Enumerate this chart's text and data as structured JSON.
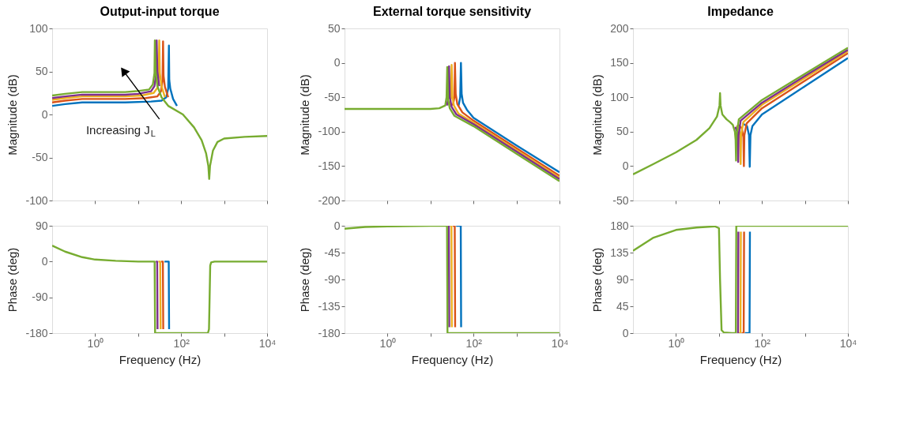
{
  "chart_data": [
    {
      "type": "line",
      "title": "Output-input torque",
      "ylabel": "Magnitude (dB)",
      "log": "x",
      "tick_labels": "y",
      "line_style": "solid",
      "xlim": [
        0.1,
        10000
      ],
      "xticks": [
        {
          "value": 1,
          "label": null
        },
        {
          "value": 10,
          "label": null
        },
        {
          "value": 100,
          "label": null
        },
        {
          "value": 1000,
          "label": null
        },
        {
          "value": 10000,
          "label": null
        }
      ],
      "ylim": [
        -100,
        100
      ],
      "yticks": [
        -100,
        -50,
        0,
        50,
        100
      ],
      "annotations": [
        "Increasing J$_{L}$"
      ],
      "series": [
        {
          "color": "#0072bd",
          "x": [
            0.1,
            0.2,
            0.5,
            1,
            5,
            20,
            35,
            45,
            50,
            52,
            53,
            56,
            65,
            80
          ],
          "values": [
            10,
            12,
            14,
            14,
            14,
            15,
            16,
            20,
            30,
            80,
            40,
            30,
            18,
            10
          ]
        },
        {
          "color": "#d95319",
          "x": [
            0.1,
            0.2,
            0.5,
            1,
            5,
            15,
            28,
            34,
            37,
            38,
            39,
            42,
            50
          ],
          "values": [
            14,
            16,
            18,
            18,
            18,
            19,
            21,
            27,
            40,
            85,
            45,
            32,
            20
          ]
        },
        {
          "color": "#edb120",
          "x": [
            0.1,
            0.2,
            0.5,
            1,
            5,
            12,
            23,
            28,
            30,
            31,
            32,
            35,
            42
          ],
          "values": [
            17,
            19,
            21,
            21,
            21,
            22,
            25,
            31,
            45,
            86,
            48,
            33,
            20
          ]
        },
        {
          "color": "#7e2f8e",
          "x": [
            0.1,
            0.2,
            0.5,
            1,
            5,
            10,
            20,
            24,
            26,
            27,
            28,
            31
          ],
          "values": [
            19,
            21,
            23,
            23,
            23,
            24,
            27,
            33,
            46,
            86,
            50,
            33
          ]
        },
        {
          "color": "#77ac30",
          "x": [
            0.1,
            0.2,
            0.5,
            1,
            5,
            9,
            18,
            22,
            24,
            24.5,
            25.5,
            28,
            35,
            50,
            110,
            200,
            300,
            380,
            430,
            450,
            470,
            550,
            700,
            1000,
            3000,
            10000
          ],
          "values": [
            22,
            24,
            26,
            26,
            26,
            27,
            29,
            35,
            48,
            86,
            50,
            33,
            20,
            10,
            0,
            -15,
            -30,
            -45,
            -60,
            -75,
            -60,
            -42,
            -32,
            -28,
            -26,
            -25
          ]
        }
      ]
    },
    {
      "type": "line",
      "title": "External torque sensitivity",
      "ylabel": "Magnitude (dB)",
      "log": "x",
      "tick_labels": "y",
      "line_style": "solid",
      "xlim": [
        0.1,
        10000
      ],
      "xticks": [
        {
          "value": 1,
          "label": null
        },
        {
          "value": 10,
          "label": null
        },
        {
          "value": 100,
          "label": null
        },
        {
          "value": 1000,
          "label": null
        },
        {
          "value": 10000,
          "label": null
        }
      ],
      "ylim": [
        -200,
        50
      ],
      "yticks": [
        -200,
        -150,
        -100,
        -50,
        0,
        50
      ],
      "series": [
        {
          "color": "#0072bd",
          "x": [
            45,
            49,
            51,
            53,
            57,
            70,
            100,
            1000,
            10000
          ],
          "values": [
            -62,
            -50,
            0,
            -45,
            -58,
            -68,
            -80,
            -120,
            -159
          ]
        },
        {
          "color": "#d95319",
          "x": [
            33,
            36,
            37,
            38.5,
            42,
            55,
            100,
            1000,
            10000
          ],
          "values": [
            -62,
            -50,
            0,
            -45,
            -60,
            -72,
            -84,
            -124,
            -164
          ]
        },
        {
          "color": "#edb120",
          "x": [
            28,
            30,
            31,
            32.3,
            35,
            45,
            100,
            1000,
            10000
          ],
          "values": [
            -62,
            -50,
            -3,
            -48,
            -62,
            -74,
            -87,
            -127,
            -167
          ]
        },
        {
          "color": "#7e2f8e",
          "x": [
            24,
            26,
            27,
            28.1,
            31,
            40,
            100,
            1000,
            10000
          ],
          "values": [
            -62,
            -50,
            -5,
            -50,
            -64,
            -75,
            -89,
            -129,
            -169
          ]
        },
        {
          "color": "#77ac30",
          "x": [
            0.1,
            1,
            10,
            16,
            22,
            23.6,
            24.5,
            25.5,
            28,
            36,
            100,
            1000,
            10000
          ],
          "values": [
            -67,
            -67,
            -67,
            -66,
            -62,
            -50,
            -6,
            -52,
            -66,
            -77,
            -92,
            -132,
            -172
          ]
        }
      ]
    },
    {
      "type": "line",
      "title": "Impedance",
      "ylabel": "Magnitude (dB)",
      "log": "x",
      "tick_labels": "y",
      "line_style": "solid",
      "xlim": [
        0.1,
        10000
      ],
      "xticks": [
        {
          "value": 1,
          "label": null
        },
        {
          "value": 10,
          "label": null
        },
        {
          "value": 100,
          "label": null
        },
        {
          "value": 1000,
          "label": null
        },
        {
          "value": 10000,
          "label": null
        }
      ],
      "ylim": [
        -50,
        200
      ],
      "yticks": [
        -50,
        0,
        50,
        100,
        150,
        200
      ],
      "series": [
        {
          "color": "#0072bd",
          "x": [
            35,
            45,
            50,
            52,
            54,
            60,
            100,
            1000,
            10000
          ],
          "values": [
            62,
            58,
            45,
            -1,
            45,
            58,
            75,
            116,
            157
          ]
        },
        {
          "color": "#d95319",
          "x": [
            28,
            34,
            37,
            38,
            39,
            44,
            100,
            1000,
            10000
          ],
          "values": [
            60,
            55,
            42,
            0,
            45,
            62,
            84,
            124,
            164
          ]
        },
        {
          "color": "#edb120",
          "x": [
            26,
            30,
            31.3,
            32,
            32.7,
            37,
            100,
            1000,
            10000
          ],
          "values": [
            59,
            52,
            40,
            3,
            45,
            64,
            89,
            128,
            167
          ]
        },
        {
          "color": "#7e2f8e",
          "x": [
            24,
            26.5,
            27.5,
            28,
            28.6,
            32,
            100,
            1000,
            10000
          ],
          "values": [
            57,
            50,
            38,
            6,
            45,
            66,
            92,
            131,
            169
          ]
        },
        {
          "color": "#77ac30",
          "x": [
            0.1,
            0.3,
            1,
            3,
            6,
            9,
            10.3,
            10.6,
            10.9,
            12,
            15,
            18,
            21,
            23.5,
            24.4,
            25,
            25.6,
            29,
            100,
            1000,
            10000
          ],
          "values": [
            -12,
            3,
            20,
            38,
            55,
            72,
            88,
            106,
            88,
            75,
            68,
            64,
            60,
            50,
            38,
            8,
            45,
            68,
            96,
            134,
            172
          ]
        }
      ]
    },
    {
      "type": "line",
      "xlabel": "Frequency  (Hz)",
      "ylabel": "Phase (deg)",
      "log": "x",
      "line_style": "solid",
      "xlim": [
        0.1,
        10000
      ],
      "xticks": [
        {
          "value": 1,
          "label": "10⁰"
        },
        {
          "value": 10,
          "label": null
        },
        {
          "value": 100,
          "label": "10²"
        },
        {
          "value": 1000,
          "label": null
        },
        {
          "value": 10000,
          "label": "10⁴"
        }
      ],
      "ylim": [
        -180,
        90
      ],
      "yticks": [
        -180,
        -90,
        0,
        90
      ],
      "series": [
        {
          "color": "#0072bd",
          "x": [
            41,
            51.5,
            52.5
          ],
          "values": [
            0,
            0,
            -170
          ]
        },
        {
          "color": "#d95319",
          "x": [
            34.5,
            37.6,
            38.4
          ],
          "values": [
            0,
            0,
            -170
          ]
        },
        {
          "color": "#edb120",
          "x": [
            29.5,
            32.6,
            33.4
          ],
          "values": [
            0,
            0,
            -170
          ]
        },
        {
          "color": "#7e2f8e",
          "x": [
            25.8,
            27.7,
            28.3
          ],
          "values": [
            0,
            0,
            -170
          ]
        },
        {
          "color": "#77ac30",
          "x": [
            0.1,
            0.2,
            0.5,
            1,
            3,
            10,
            24.2,
            24.8,
            420,
            445,
            460,
            475,
            500,
            600,
            10000
          ],
          "values": [
            40,
            25,
            11,
            5,
            2,
            0,
            0,
            -180,
            -180,
            -170,
            -90,
            -10,
            -2,
            0,
            0
          ]
        }
      ]
    },
    {
      "type": "line",
      "xlabel": "Frequency  (Hz)",
      "ylabel": "Phase (deg)",
      "log": "x",
      "line_style": "solid",
      "xlim": [
        0.1,
        10000
      ],
      "xticks": [
        {
          "value": 1,
          "label": "10⁰"
        },
        {
          "value": 10,
          "label": null
        },
        {
          "value": 100,
          "label": "10²"
        },
        {
          "value": 1000,
          "label": null
        },
        {
          "value": 10000,
          "label": "10⁴"
        }
      ],
      "ylim": [
        -180,
        0
      ],
      "yticks": [
        -180,
        -135,
        -90,
        -45,
        0
      ],
      "series": [
        {
          "color": "#0072bd",
          "x": [
            39.5,
            50.5,
            51.5
          ],
          "values": [
            0,
            0,
            -170
          ]
        },
        {
          "color": "#d95319",
          "x": [
            33,
            36.6,
            37.4
          ],
          "values": [
            0,
            0,
            -170
          ]
        },
        {
          "color": "#edb120",
          "x": [
            28.5,
            30.7,
            31.3
          ],
          "values": [
            0,
            0,
            -170
          ]
        },
        {
          "color": "#7e2f8e",
          "x": [
            25.8,
            26.7,
            27.3
          ],
          "values": [
            0,
            0,
            -170
          ]
        },
        {
          "color": "#77ac30",
          "x": [
            0.1,
            0.3,
            1,
            10,
            24.2,
            24.8,
            10000
          ],
          "values": [
            -5,
            -2,
            -1,
            0,
            0,
            -180,
            -180
          ]
        }
      ]
    },
    {
      "type": "line",
      "xlabel": "Frequency  (Hz)",
      "ylabel": "Phase (deg)",
      "log": "x",
      "line_style": "solid",
      "xlim": [
        0.1,
        10000
      ],
      "xticks": [
        {
          "value": 1,
          "label": "10⁰"
        },
        {
          "value": 10,
          "label": null
        },
        {
          "value": 100,
          "label": "10²"
        },
        {
          "value": 1000,
          "label": null
        },
        {
          "value": 10000,
          "label": "10⁴"
        }
      ],
      "ylim": [
        0,
        180
      ],
      "yticks": [
        0,
        45,
        90,
        135,
        180
      ],
      "series": [
        {
          "color": "#0072bd",
          "x": [
            40,
            51.5,
            52.5
          ],
          "values": [
            0,
            0,
            170
          ]
        },
        {
          "color": "#d95319",
          "x": [
            33.5,
            37.6,
            38.4
          ],
          "values": [
            0,
            0,
            170
          ]
        },
        {
          "color": "#edb120",
          "x": [
            29,
            31.7,
            32.3
          ],
          "values": [
            0,
            0,
            170
          ]
        },
        {
          "color": "#7e2f8e",
          "x": [
            26.3,
            27.7,
            28.3
          ],
          "values": [
            0,
            0,
            170
          ]
        },
        {
          "color": "#77ac30",
          "x": [
            0.1,
            0.3,
            1,
            3,
            8,
            10,
            10.6,
            11.5,
            13,
            20,
            24.7,
            25.3,
            10000
          ],
          "values": [
            138,
            160,
            173,
            177,
            179,
            176,
            90,
            5,
            1,
            0,
            0,
            180,
            180
          ]
        }
      ]
    }
  ]
}
